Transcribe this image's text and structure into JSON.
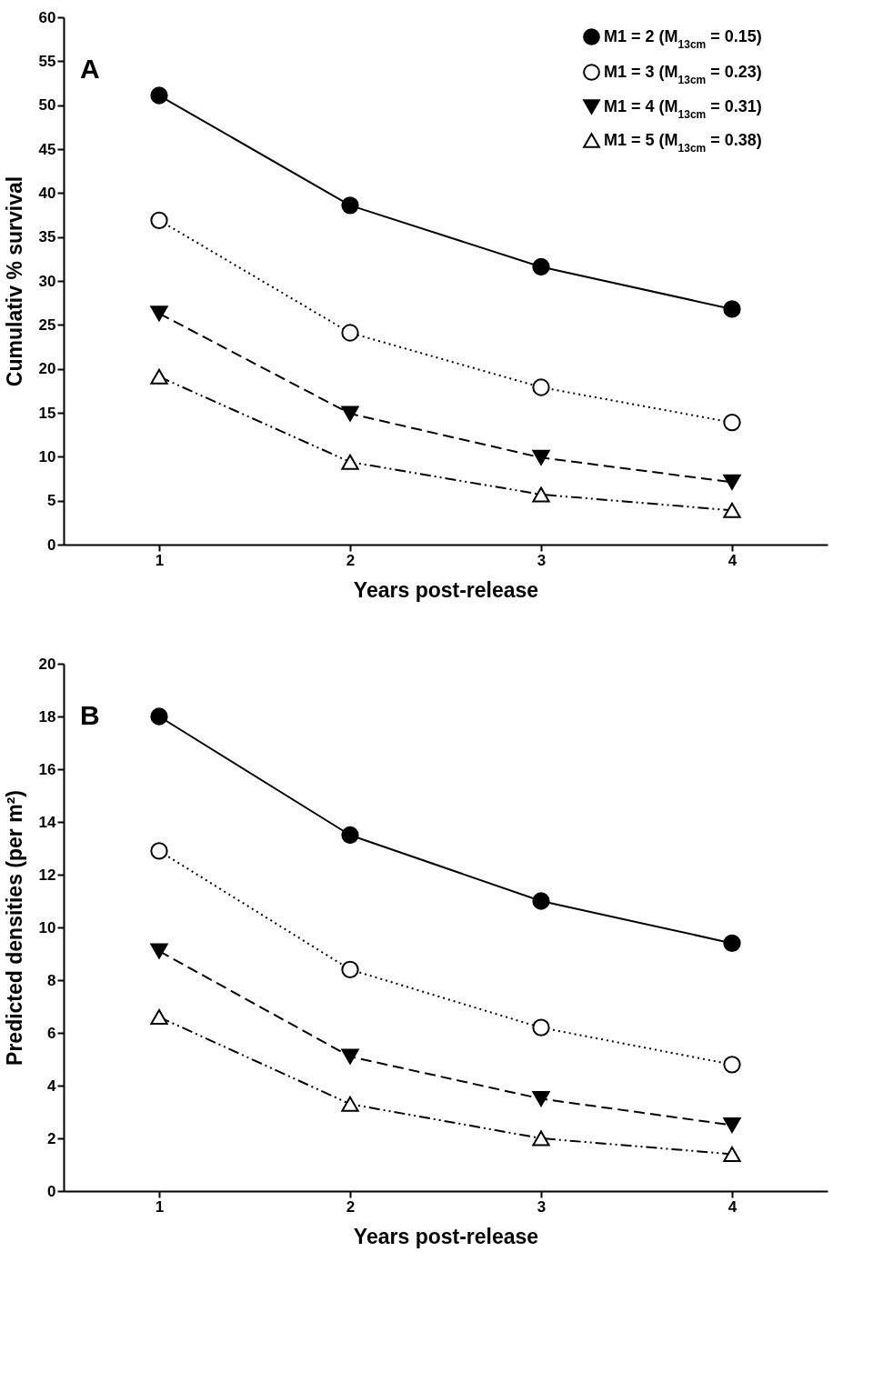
{
  "chart_data": [
    {
      "type": "line",
      "title": "A",
      "xlabel": "Years post-release",
      "ylabel": "Cumulativ % survival",
      "x": [
        1,
        2,
        3,
        4
      ],
      "xlim": [
        0.5,
        4.5
      ],
      "xticks": [
        1,
        2,
        3,
        4
      ],
      "ylim": [
        0,
        60
      ],
      "yticks": [
        0,
        5,
        10,
        15,
        20,
        25,
        30,
        35,
        40,
        45,
        50,
        55,
        60
      ],
      "grid": false,
      "legend": "top right",
      "series": [
        {
          "name": "M1 = 2 (M$_{13cm}$ = 0.15)",
          "color": "#000000",
          "marker": "circle",
          "line_style": "solid",
          "values": [
            51.1,
            38.6,
            31.6,
            26.8
          ]
        },
        {
          "name": "M1 = 3 (M$_{13cm}$ = 0.23)",
          "color": "#000000",
          "marker": "circle-open",
          "line_style": "dotted",
          "values": [
            36.9,
            24.1,
            17.9,
            13.9
          ]
        },
        {
          "name": "M1 = 4 (M$_{13cm}$ = 0.31)",
          "color": "#000000",
          "marker": "triangle-down",
          "line_style": "dashed",
          "values": [
            26.3,
            14.9,
            9.9,
            7.1
          ]
        },
        {
          "name": "M1 = 5 (M$_{13cm}$ = 0.38)",
          "color": "#000000",
          "marker": "triangle-open",
          "line_style": "dashdot",
          "values": [
            19.1,
            9.4,
            5.7,
            3.9
          ]
        }
      ]
    },
    {
      "type": "line",
      "title": "B",
      "xlabel": "Years post-release",
      "ylabel": "Predicted densities (per m²)",
      "x": [
        1,
        2,
        3,
        4
      ],
      "xlim": [
        0.5,
        4.5
      ],
      "xticks": [
        1,
        2,
        3,
        4
      ],
      "ylim": [
        0,
        20
      ],
      "yticks": [
        0,
        2,
        4,
        6,
        8,
        10,
        12,
        14,
        16,
        18,
        20
      ],
      "grid": false,
      "legend": false,
      "series": [
        {
          "color": "#000000",
          "marker": "circle",
          "line_style": "solid",
          "values": [
            18.0,
            13.5,
            11.0,
            9.4
          ]
        },
        {
          "color": "#000000",
          "marker": "circle-open",
          "line_style": "dotted",
          "values": [
            12.9,
            8.4,
            6.2,
            4.8
          ]
        },
        {
          "color": "#000000",
          "marker": "triangle-down",
          "line_style": "dashed",
          "values": [
            9.1,
            5.1,
            3.5,
            2.5
          ]
        },
        {
          "color": "#000000",
          "marker": "triangle-open",
          "line_style": "dashdot",
          "values": [
            6.6,
            3.3,
            2.0,
            1.4
          ]
        }
      ]
    }
  ]
}
